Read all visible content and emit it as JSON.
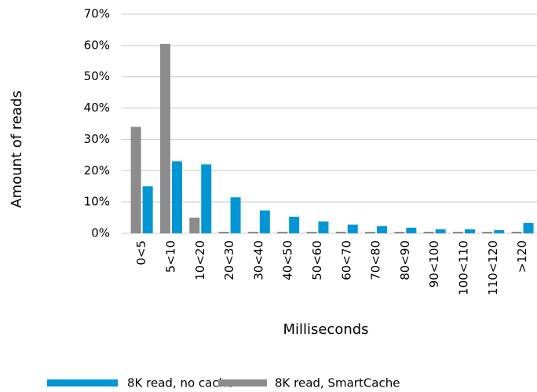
{
  "chart_data": {
    "type": "bar",
    "y_label": "Amount of reads",
    "x_label": "Milliseconds",
    "categories": [
      "0<5",
      "5<10",
      "10<20",
      "20<30",
      "30<40",
      "40<50",
      "50<60",
      "60<70",
      "70<80",
      "80<90",
      "90<100",
      "100<110",
      "110<120",
      ">120"
    ],
    "series": [
      {
        "name": "8K read, no cache",
        "color": "#0096d6",
        "values": [
          15,
          23,
          22,
          11.5,
          7.3,
          5.3,
          3.8,
          2.8,
          2.3,
          1.8,
          1.3,
          1.3,
          1,
          3.3
        ]
      },
      {
        "name": "8K read, SmartCache",
        "color": "#8c8c8c",
        "values": [
          34,
          60.5,
          5,
          0.5,
          0.5,
          0.5,
          0.5,
          0.5,
          0.5,
          0.5,
          0.5,
          0.5,
          0.5,
          0.5
        ]
      }
    ],
    "ylim": [
      0,
      70
    ],
    "yticks": [
      {
        "value": 0,
        "label": "0%"
      },
      {
        "value": 10,
        "label": "10%"
      },
      {
        "value": 20,
        "label": "20%"
      },
      {
        "value": 30,
        "label": "30%"
      },
      {
        "value": 40,
        "label": "40%"
      },
      {
        "value": 50,
        "label": "50%"
      },
      {
        "value": 60,
        "label": "60%"
      },
      {
        "value": 70,
        "label": "70%"
      }
    ],
    "grid": true
  }
}
